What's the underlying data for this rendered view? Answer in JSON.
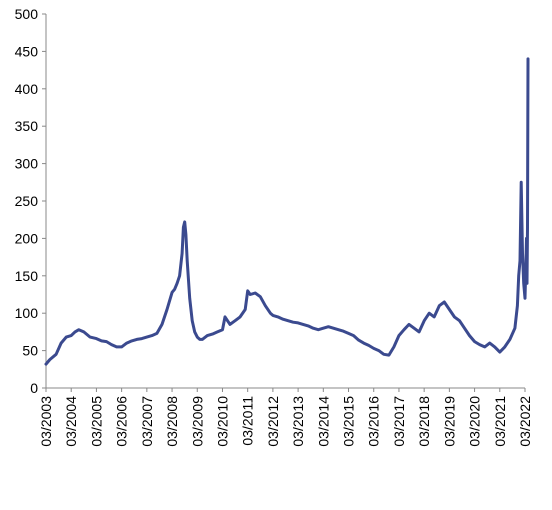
{
  "chart_data": {
    "type": "line",
    "title": "",
    "xlabel": "",
    "ylabel": "",
    "ylim": [
      0,
      500
    ],
    "y_ticks": [
      0,
      50,
      100,
      150,
      200,
      250,
      300,
      350,
      400,
      450,
      500
    ],
    "x_tick_labels": [
      "03/2003",
      "03/2004",
      "03/2005",
      "03/2006",
      "03/2007",
      "03/2008",
      "03/2009",
      "03/2010",
      "03/2011",
      "03/2012",
      "03/2013",
      "03/2014",
      "03/2015",
      "03/2016",
      "03/2017",
      "03/2018",
      "03/2019",
      "03/2020",
      "03/2021",
      "03/2022"
    ],
    "grid": false,
    "legend": "none",
    "line_color": "#3b4a8f",
    "series": [
      {
        "x": [
          2003.0,
          2003.15,
          2003.4,
          2003.6,
          2003.8,
          2004.0,
          2004.15,
          2004.3,
          2004.5,
          2004.75,
          2005.0,
          2005.2,
          2005.4,
          2005.6,
          2005.8,
          2006.0,
          2006.2,
          2006.4,
          2006.6,
          2006.8,
          2007.0,
          2007.2,
          2007.4,
          2007.6,
          2007.8,
          2008.0,
          2008.1,
          2008.2,
          2008.3,
          2008.4,
          2008.45,
          2008.5,
          2008.55,
          2008.6,
          2008.7,
          2008.8,
          2008.9,
          2009.0,
          2009.1,
          2009.2,
          2009.4,
          2009.6,
          2009.8,
          2010.0,
          2010.1,
          2010.3,
          2010.5,
          2010.7,
          2010.9,
          2011.0,
          2011.1,
          2011.3,
          2011.5,
          2011.7,
          2011.9,
          2012.0,
          2012.2,
          2012.4,
          2012.6,
          2012.8,
          2013.0,
          2013.2,
          2013.4,
          2013.6,
          2013.8,
          2014.0,
          2014.2,
          2014.4,
          2014.6,
          2014.8,
          2015.0,
          2015.2,
          2015.4,
          2015.6,
          2015.8,
          2016.0,
          2016.2,
          2016.4,
          2016.6,
          2016.8,
          2017.0,
          2017.2,
          2017.4,
          2017.6,
          2017.8,
          2018.0,
          2018.2,
          2018.4,
          2018.6,
          2018.8,
          2019.0,
          2019.2,
          2019.4,
          2019.6,
          2019.8,
          2020.0,
          2020.2,
          2020.4,
          2020.6,
          2020.8,
          2021.0,
          2021.2,
          2021.4,
          2021.6,
          2021.7,
          2021.75,
          2021.8,
          2021.85,
          2021.9,
          2021.95,
          2022.0,
          2022.03,
          2022.06,
          2022.08,
          2022.1,
          2022.12
        ],
        "y": [
          32,
          38,
          45,
          60,
          68,
          70,
          75,
          78,
          75,
          68,
          66,
          63,
          62,
          58,
          55,
          55,
          60,
          63,
          65,
          66,
          68,
          70,
          73,
          85,
          105,
          128,
          132,
          140,
          150,
          180,
          215,
          222,
          205,
          170,
          120,
          90,
          75,
          68,
          65,
          65,
          70,
          72,
          75,
          78,
          95,
          85,
          90,
          95,
          105,
          130,
          125,
          127,
          122,
          110,
          100,
          97,
          95,
          92,
          90,
          88,
          87,
          85,
          83,
          80,
          78,
          80,
          82,
          80,
          78,
          76,
          73,
          70,
          64,
          60,
          57,
          53,
          50,
          45,
          44,
          55,
          70,
          78,
          85,
          80,
          75,
          90,
          100,
          95,
          110,
          115,
          105,
          95,
          90,
          80,
          70,
          62,
          58,
          55,
          60,
          55,
          48,
          55,
          65,
          80,
          110,
          150,
          170,
          275,
          180,
          140,
          120,
          160,
          200,
          140,
          215,
          440
        ]
      }
    ]
  }
}
